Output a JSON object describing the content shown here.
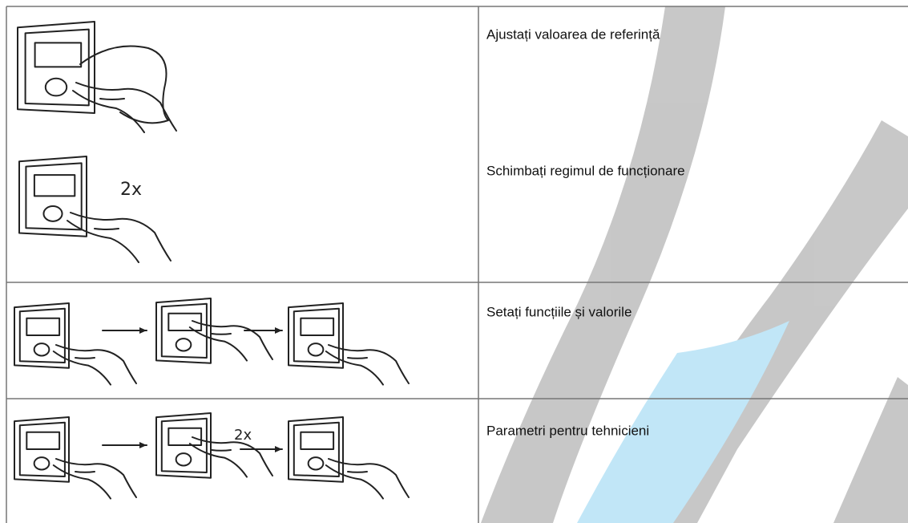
{
  "table": {
    "rows": [
      {
        "text": "Ajustați valoarea de referință"
      },
      {
        "text": "Schimbați regimul de funcționare",
        "label": "2x"
      },
      {
        "text": "Setați funcțiile și valorile"
      },
      {
        "text": "Parametri pentru tehnicieni",
        "label": "2x"
      }
    ]
  }
}
